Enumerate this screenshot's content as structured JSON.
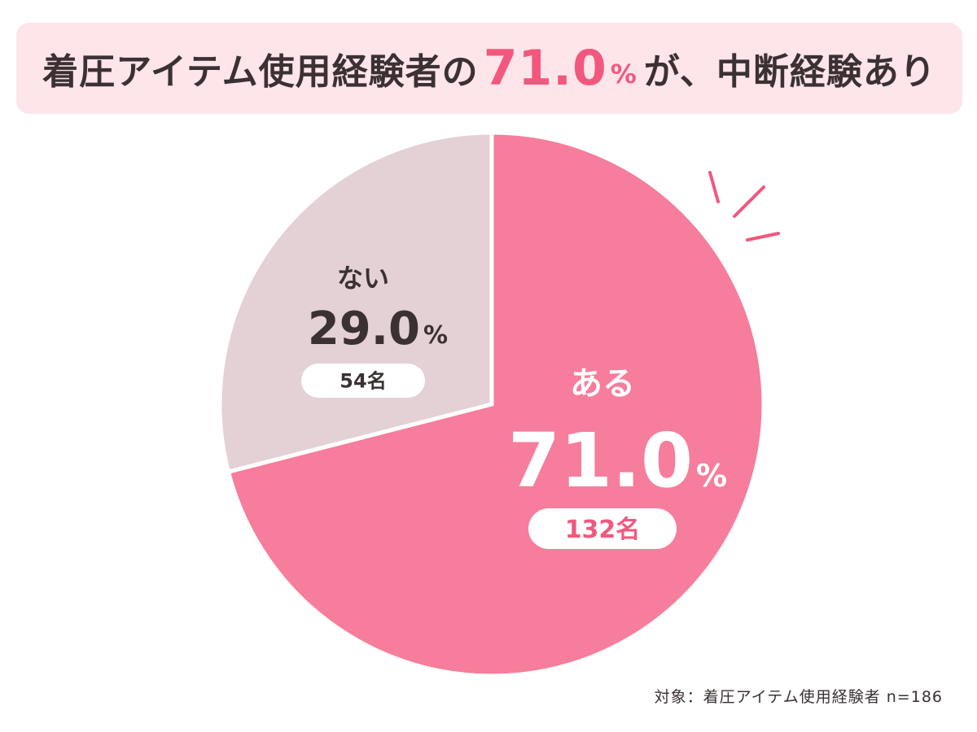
{
  "title": {
    "before": "着圧アイテム使用経験者の",
    "number": "71.0",
    "percent": "%",
    "after": "が、中断経験あり"
  },
  "footnote": "対象：着圧アイテム使用経験者 n=186",
  "colors": {
    "accent": "#f2587e",
    "yes": "#f67d9b",
    "no": "#e3d1d6",
    "text": "#3b3132"
  },
  "chart_data": {
    "type": "pie",
    "slices": [
      {
        "label": "ある",
        "value": 71.0,
        "value_label": "71.0",
        "unit": "%",
        "count": "132名",
        "color": "#f67d9b"
      },
      {
        "label": "ない",
        "value": 29.0,
        "value_label": "29.0",
        "unit": "%",
        "count": "54名",
        "color": "#e3d1d6"
      }
    ],
    "start": "12 o'clock",
    "direction": "clockwise"
  }
}
